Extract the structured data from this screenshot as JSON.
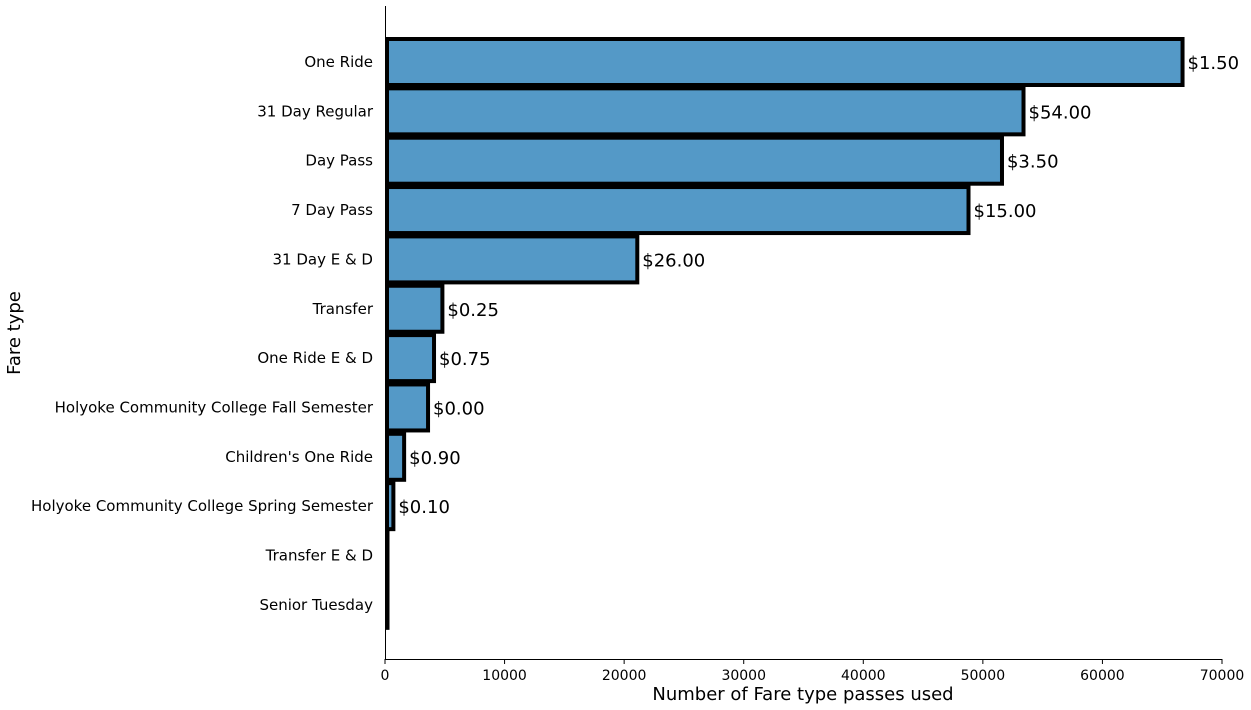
{
  "chart_data": {
    "type": "bar",
    "orientation": "horizontal",
    "xlabel": "Number of Fare type passes used",
    "ylabel": "Fare type",
    "xlim": [
      0,
      70000
    ],
    "xticks": [
      0,
      10000,
      20000,
      30000,
      40000,
      50000,
      60000,
      70000
    ],
    "grid": false,
    "bar_color": "#5499c7",
    "edge_color": "#000000",
    "bars": [
      {
        "category": "One Ride",
        "value": 66700,
        "label": "$1.50"
      },
      {
        "category": "31 Day Regular",
        "value": 53400,
        "label": "$54.00"
      },
      {
        "category": "Day Pass",
        "value": 51600,
        "label": "$3.50"
      },
      {
        "category": "7 Day Pass",
        "value": 48800,
        "label": "$15.00"
      },
      {
        "category": "31 Day E & D",
        "value": 21100,
        "label": "$26.00"
      },
      {
        "category": "Transfer",
        "value": 4800,
        "label": "$0.25"
      },
      {
        "category": "One Ride E & D",
        "value": 4100,
        "label": "$0.75"
      },
      {
        "category": "Holyoke Community College Fall Semester",
        "value": 3600,
        "label": "$0.00"
      },
      {
        "category": "Children's One Ride",
        "value": 1600,
        "label": "$0.90"
      },
      {
        "category": "Holyoke Community College Spring Semester",
        "value": 700,
        "label": "$0.10"
      },
      {
        "category": "Transfer E & D",
        "value": 150,
        "label": ""
      },
      {
        "category": "Senior Tuesday",
        "value": 150,
        "label": ""
      }
    ]
  }
}
